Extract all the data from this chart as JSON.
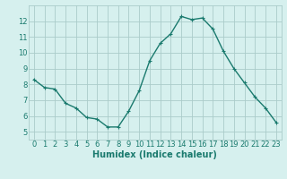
{
  "x": [
    0,
    1,
    2,
    3,
    4,
    5,
    6,
    7,
    8,
    9,
    10,
    11,
    12,
    13,
    14,
    15,
    16,
    17,
    18,
    19,
    20,
    21,
    22,
    23
  ],
  "y": [
    8.3,
    7.8,
    7.7,
    6.8,
    6.5,
    5.9,
    5.8,
    5.3,
    5.3,
    6.3,
    7.6,
    9.5,
    10.6,
    11.2,
    12.3,
    12.1,
    12.2,
    11.5,
    10.1,
    9.0,
    8.1,
    7.2,
    6.5,
    5.6
  ],
  "line_color": "#1a7a6e",
  "marker": "+",
  "marker_size": 3,
  "bg_color": "#d6f0ee",
  "grid_color": "#aaccca",
  "xlabel": "Humidex (Indice chaleur)",
  "xlim": [
    -0.5,
    23.5
  ],
  "ylim": [
    4.5,
    13.0
  ],
  "yticks": [
    5,
    6,
    7,
    8,
    9,
    10,
    11,
    12
  ],
  "xticks": [
    0,
    1,
    2,
    3,
    4,
    5,
    6,
    7,
    8,
    9,
    10,
    11,
    12,
    13,
    14,
    15,
    16,
    17,
    18,
    19,
    20,
    21,
    22,
    23
  ],
  "font_color": "#1a7a6e",
  "tick_fontsize": 6,
  "xlabel_fontsize": 7,
  "line_width": 1.0,
  "marker_edge_width": 0.8
}
